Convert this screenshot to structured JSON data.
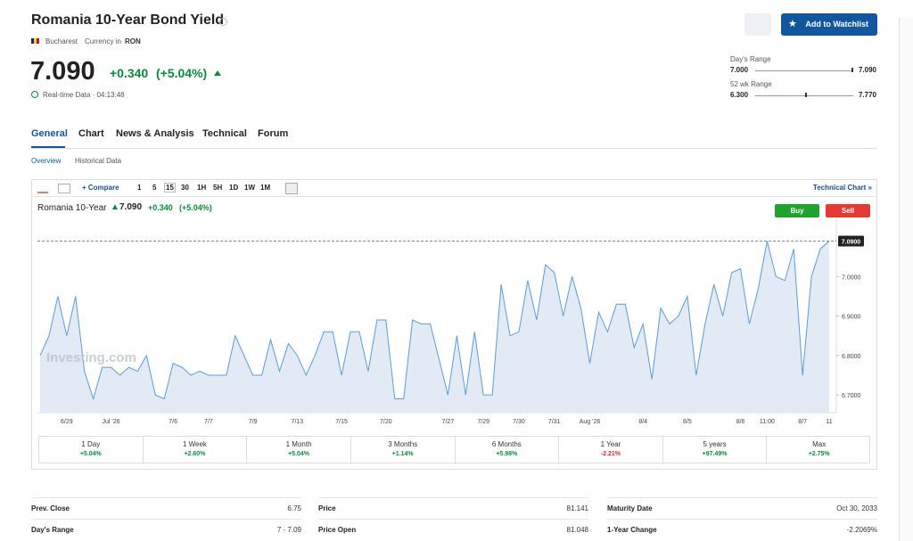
{
  "header": {
    "title": "Romania 10-Year Bond Yield",
    "exchange": "Bucharest",
    "currency_label": "Currency in",
    "currency": "RON",
    "watchlist_button": "Add to Watchlist"
  },
  "quote": {
    "price": "7.090",
    "change": "+0.340",
    "change_pct": "(+5.04%)",
    "time": "Real-time Data · 04:13:48"
  },
  "ranges": [
    {
      "label": "Day's Range",
      "low": "7.000",
      "high": "7.090"
    },
    {
      "label": "52 wk Range",
      "low": "6.300",
      "high": "7.770"
    }
  ],
  "tabs": [
    "General",
    "Chart",
    "News & Analysis",
    "Technical",
    "Forum"
  ],
  "subtabs": [
    "Overview",
    "Historical Data"
  ],
  "toolbar": {
    "compare": "+ Compare",
    "intervals": [
      "1",
      "5",
      "15",
      "30",
      "1H",
      "5H",
      "1D",
      "1W",
      "1M"
    ],
    "technical_chart": "Technical Chart »"
  },
  "trade": {
    "buy": "Buy",
    "sell": "Sell"
  },
  "chart_data": {
    "type": "area",
    "title": "Romania 10-Year",
    "last": "7.090",
    "change": "+0.340",
    "change_pct": "(+5.04%)",
    "watermark": "Investing.com",
    "color": "#5b9bd5",
    "area_color": "#e2ebf5",
    "categories": [
      null,
      null,
      null,
      "6/29",
      null,
      null,
      null,
      null,
      "Jul '26",
      null,
      null,
      null,
      null,
      null,
      null,
      "7/6",
      null,
      null,
      null,
      "7/7",
      null,
      null,
      null,
      null,
      "7/9",
      null,
      null,
      null,
      null,
      "7/13",
      null,
      null,
      null,
      null,
      "7/15",
      null,
      null,
      null,
      null,
      "7/20",
      null,
      null,
      null,
      null,
      null,
      null,
      "7/27",
      null,
      null,
      null,
      "7/29",
      null,
      null,
      null,
      "7/30",
      null,
      null,
      null,
      "7/31",
      null,
      null,
      null,
      "Aug '26",
      null,
      null,
      null,
      null,
      null,
      "8/4",
      null,
      null,
      null,
      null,
      "8/5",
      null,
      null,
      null,
      null,
      null,
      "8/6",
      null,
      null,
      "11:00",
      null,
      null,
      null,
      "8/7",
      null,
      null,
      "11"
    ],
    "values": [
      6.8,
      6.85,
      6.95,
      6.85,
      6.95,
      6.76,
      6.69,
      6.77,
      6.77,
      6.75,
      6.77,
      6.76,
      6.8,
      6.7,
      6.69,
      6.78,
      6.77,
      6.75,
      6.76,
      6.75,
      6.75,
      6.75,
      6.85,
      6.8,
      6.75,
      6.75,
      6.84,
      6.76,
      6.83,
      6.8,
      6.75,
      6.8,
      6.86,
      6.86,
      6.75,
      6.86,
      6.86,
      6.76,
      6.89,
      6.89,
      6.69,
      6.69,
      6.89,
      6.88,
      6.88,
      6.79,
      6.7,
      6.85,
      6.7,
      6.86,
      6.7,
      6.7,
      6.98,
      6.85,
      6.86,
      6.99,
      6.89,
      7.03,
      7.01,
      6.9,
      7.0,
      6.92,
      6.78,
      6.91,
      6.86,
      6.93,
      6.93,
      6.82,
      6.88,
      6.74,
      6.92,
      6.88,
      6.9,
      6.95,
      6.75,
      6.88,
      6.98,
      6.9,
      7.01,
      7.02,
      6.88,
      6.97,
      7.09,
      7.0,
      6.99,
      7.07,
      6.75,
      7.0,
      7.07,
      7.09
    ],
    "ylim": [
      6.655,
      7.125
    ],
    "yticks": [
      {
        "value": 6.7,
        "label": "6.7000"
      },
      {
        "value": 6.8,
        "label": "6.8000"
      },
      {
        "value": 6.9,
        "label": "6.9000"
      },
      {
        "value": 7.0,
        "label": "7.0000"
      }
    ],
    "reference_line": {
      "value": 7.09,
      "label": "7.0900"
    }
  },
  "periods": [
    {
      "label": "1 Day",
      "change": "+5.04%"
    },
    {
      "label": "1 Week",
      "change": "+2.60%"
    },
    {
      "label": "1 Month",
      "change": "+5.04%"
    },
    {
      "label": "3 Months",
      "change": "+1.14%"
    },
    {
      "label": "6 Months",
      "change": "+5.98%"
    },
    {
      "label": "1 Year",
      "change": "-2.21%"
    },
    {
      "label": "5 years",
      "change": "+97.49%"
    },
    {
      "label": "Max",
      "change": "+2.75%"
    }
  ],
  "stats": [
    [
      {
        "label": "Prev. Close",
        "value": "6.75"
      },
      {
        "label": "Day's Range",
        "value": "7 - 7.09"
      }
    ],
    [
      {
        "label": "Price",
        "value": "81.141"
      },
      {
        "label": "Price Open",
        "value": "81.048"
      }
    ],
    [
      {
        "label": "Maturity Date",
        "value": "Oct 30, 2033"
      },
      {
        "label": "1-Year Change",
        "value": "-2.2069%"
      }
    ]
  ]
}
